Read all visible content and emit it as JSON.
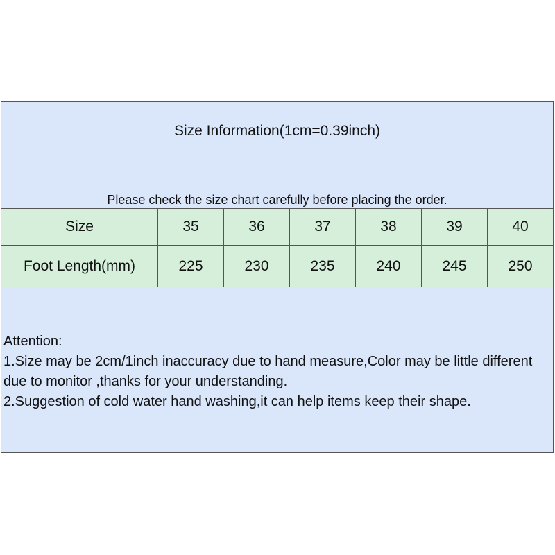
{
  "title": "Size Information(1cm=0.39inch)",
  "note": "Please check the size chart carefully before placing the order.",
  "table": {
    "rows": [
      {
        "label": "Size",
        "values": [
          "35",
          "36",
          "37",
          "38",
          "39",
          "40"
        ]
      },
      {
        "label": "Foot Length(mm)",
        "values": [
          "225",
          "230",
          "235",
          "240",
          "245",
          "250"
        ]
      }
    ]
  },
  "attention": {
    "heading": "Attention:",
    "lines": [
      "1.Size may be 2cm/1inch inaccuracy due to hand measure,Color may be little different due to monitor ,thanks for your understanding.",
      "2.Suggestion of cold water hand washing,it can help items keep their shape."
    ]
  },
  "colors": {
    "header_bg": "#dae6fa",
    "table_bg": "#d5efdb",
    "border": "#555555"
  }
}
